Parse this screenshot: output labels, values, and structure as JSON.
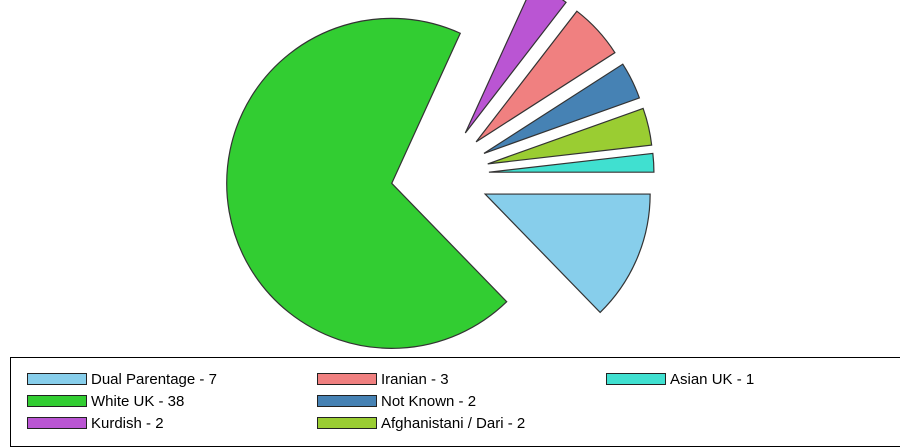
{
  "chart_data": {
    "type": "pie",
    "title": "",
    "slices": [
      {
        "label": "Dual Parentage",
        "value": 7,
        "color": "#87ceeb"
      },
      {
        "label": "White UK",
        "value": 38,
        "color": "#32cd32"
      },
      {
        "label": "Kurdish",
        "value": 2,
        "color": "#ba55d3"
      },
      {
        "label": "Iranian",
        "value": 3,
        "color": "#f08080"
      },
      {
        "label": "Not Known",
        "value": 2,
        "color": "#4682b4"
      },
      {
        "label": "Afghanistani / Dari",
        "value": 2,
        "color": "#9acd32"
      },
      {
        "label": "Asian UK",
        "value": 1,
        "color": "#40e0d0"
      }
    ],
    "exploded": true,
    "legend": {
      "placement": "bottom",
      "entries": [
        "Dual Parentage - 7",
        "White UK - 38",
        "Kurdish - 2",
        "Iranian - 3",
        "Not Known - 2",
        "Afghanistani / Dari - 2",
        "Asian UK - 1"
      ]
    }
  }
}
